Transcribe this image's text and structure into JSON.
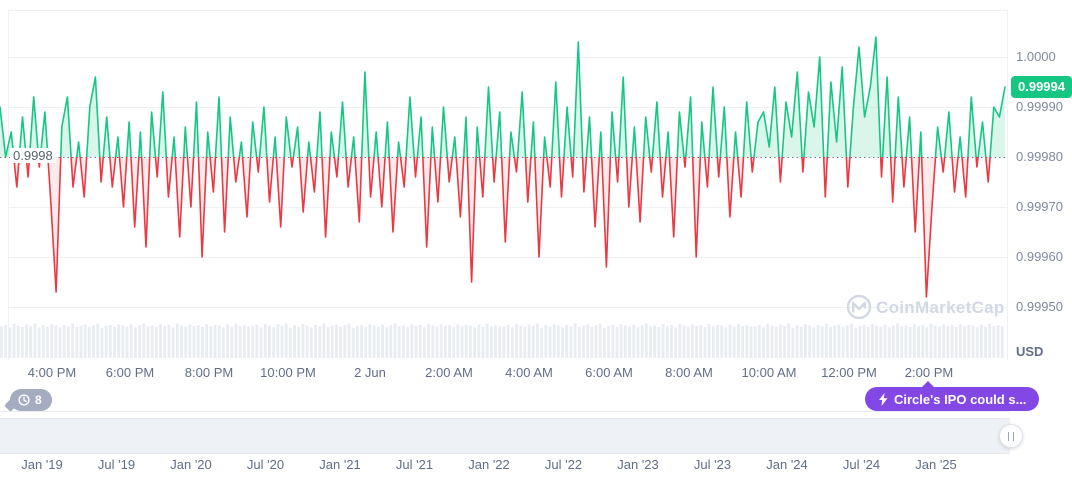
{
  "chart": {
    "currency": "USD",
    "current_price_label": "0.99994",
    "baseline_label": "0.9998",
    "y_axis_labels": [
      "1.0000",
      "0.99990",
      "0.99980",
      "0.99970",
      "0.99960",
      "0.99950"
    ],
    "x_axis_labels": [
      "4:00 PM",
      "6:00 PM",
      "8:00 PM",
      "10:00 PM",
      "2 Jun",
      "2:00 AM",
      "4:00 AM",
      "6:00 AM",
      "8:00 AM",
      "10:00 AM",
      "12:00 PM",
      "2:00 PM"
    ],
    "watermark": "CoinMarketCap",
    "colors": {
      "up": "#16c784",
      "down": "#ea3943",
      "up_fill": "rgba(22,199,132,0.16)",
      "down_fill": "rgba(234,57,67,0.10)",
      "price_badge": "#16c784",
      "annotation": "#8247e5",
      "grid": "#eff2f5",
      "axis_text": "#808a9d",
      "volume": "#e9edf2",
      "watermark": "#d2d9e4"
    }
  },
  "chart_data": {
    "type": "line",
    "title": "",
    "xlabel": "",
    "ylabel": "USD",
    "baseline": 0.9998,
    "current_price": 0.99994,
    "ylim": [
      0.9995,
      1.0001
    ],
    "y_ticks": [
      1.0,
      0.9999,
      0.9998,
      0.9997,
      0.9996,
      0.9995
    ],
    "x_ticks": [
      "4:00 PM",
      "6:00 PM",
      "8:00 PM",
      "10:00 PM",
      "2 Jun",
      "2:00 AM",
      "4:00 AM",
      "6:00 AM",
      "8:00 AM",
      "10:00 AM",
      "12:00 PM",
      "2:00 PM"
    ],
    "grid": true,
    "legend": false,
    "series": [
      {
        "name": "price",
        "values": [
          0.9999,
          0.9998,
          0.99985,
          0.99974,
          0.99988,
          0.99976,
          0.99992,
          0.99978,
          0.99989,
          0.99972,
          0.99953,
          0.99986,
          0.99992,
          0.99974,
          0.99983,
          0.99972,
          0.9999,
          0.99996,
          0.99975,
          0.99988,
          0.99974,
          0.99984,
          0.9997,
          0.99987,
          0.99966,
          0.99985,
          0.99962,
          0.99989,
          0.99976,
          0.99993,
          0.99972,
          0.99984,
          0.99964,
          0.99986,
          0.9997,
          0.99991,
          0.9996,
          0.99985,
          0.99973,
          0.99992,
          0.99965,
          0.99988,
          0.99975,
          0.99983,
          0.99968,
          0.99987,
          0.99977,
          0.9999,
          0.99971,
          0.99984,
          0.99966,
          0.99988,
          0.99978,
          0.99986,
          0.99969,
          0.99983,
          0.99973,
          0.99989,
          0.99964,
          0.99985,
          0.99976,
          0.99991,
          0.99974,
          0.99984,
          0.99967,
          0.99997,
          0.99972,
          0.99985,
          0.9997,
          0.99987,
          0.99965,
          0.99983,
          0.99974,
          0.99992,
          0.99976,
          0.99988,
          0.99962,
          0.99986,
          0.99971,
          0.9999,
          0.99975,
          0.99984,
          0.99968,
          0.99988,
          0.99955,
          0.99986,
          0.99972,
          0.99994,
          0.99975,
          0.99989,
          0.99963,
          0.99985,
          0.99977,
          0.99993,
          0.99971,
          0.99987,
          0.9996,
          0.99984,
          0.99974,
          0.99995,
          0.99972,
          0.9999,
          0.99976,
          1.00003,
          0.99973,
          0.99988,
          0.99966,
          0.99985,
          0.99958,
          0.99989,
          0.99975,
          0.99996,
          0.9997,
          0.99986,
          0.99967,
          0.99988,
          0.99977,
          0.99991,
          0.99972,
          0.99985,
          0.99964,
          0.99989,
          0.99978,
          0.99992,
          0.9996,
          0.99987,
          0.99974,
          0.99994,
          0.99976,
          0.9999,
          0.99968,
          0.99985,
          0.99972,
          0.99991,
          0.99977,
          0.99987,
          0.99989,
          0.99982,
          0.99994,
          0.99975,
          0.99991,
          0.99984,
          0.99997,
          0.99977,
          0.99993,
          0.99986,
          1.0,
          0.99972,
          0.99995,
          0.99983,
          0.99998,
          0.99974,
          0.9999,
          1.00002,
          0.99988,
          0.99994,
          1.00004,
          0.99976,
          0.99996,
          0.99971,
          0.99992,
          0.99974,
          0.99988,
          0.99965,
          0.99985,
          0.99952,
          0.9997,
          0.99986,
          0.99977,
          0.99989,
          0.99973,
          0.99984,
          0.99972,
          0.99992,
          0.99978,
          0.99987,
          0.99975,
          0.9999,
          0.99988,
          0.99994
        ]
      }
    ],
    "volume_relative": [
      0.88,
      0.92,
      0.85,
      0.95,
      0.9,
      0.86,
      0.93,
      0.89,
      0.96,
      0.84,
      0.91,
      0.87,
      0.94,
      0.9,
      0.85,
      0.92,
      0.88,
      0.96,
      0.86,
      0.9,
      0.93,
      0.87,
      0.91,
      0.95,
      0.84,
      0.89,
      0.92,
      0.86,
      0.94,
      0.9,
      0.87,
      0.93,
      0.85,
      0.91,
      0.96,
      0.88,
      0.9,
      0.86,
      0.94,
      0.89,
      0.92,
      0.85,
      0.95,
      0.9,
      0.87,
      0.93,
      0.89,
      0.91,
      0.86,
      0.94,
      0.88,
      0.92,
      0.9,
      0.85,
      0.93,
      0.87,
      0.95,
      0.89,
      0.91,
      0.88
    ]
  },
  "annotations": {
    "history_count": "8",
    "news_badge": "Circle's IPO could s..."
  },
  "timeline": {
    "labels": [
      "Jan '19",
      "Jul '19",
      "Jan '20",
      "Jul '20",
      "Jan '21",
      "Jul '21",
      "Jan '22",
      "Jul '22",
      "Jan '23",
      "Jul '23",
      "Jan '24",
      "Jul '24",
      "Jan '25"
    ]
  }
}
